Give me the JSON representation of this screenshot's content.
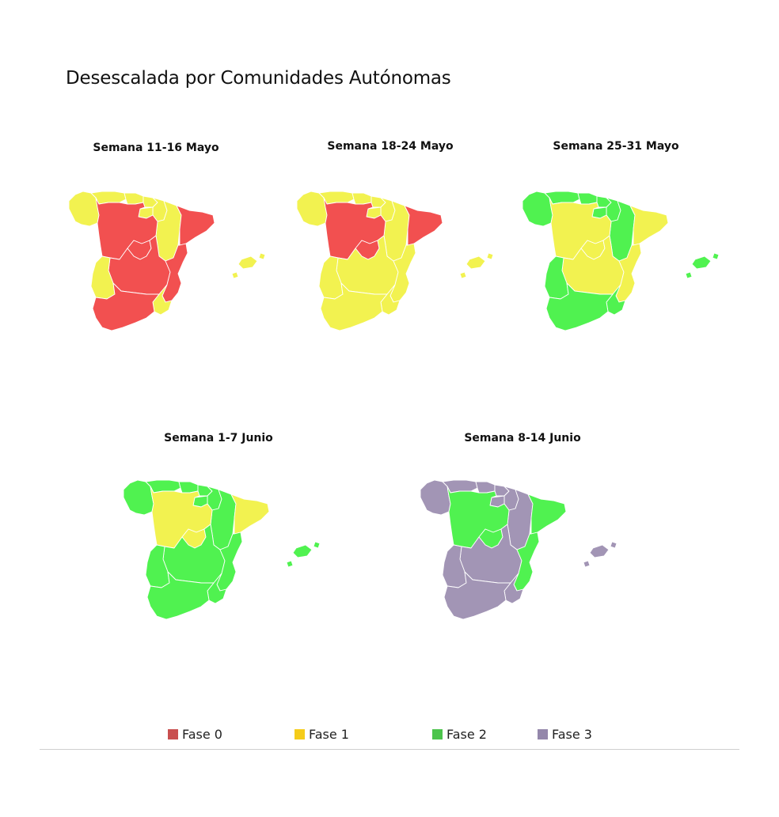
{
  "title": "Desescalada por Comunidades Autónomas",
  "colors": {
    "fase0": "#f25050",
    "fase1": "#f2f250",
    "fase2": "#50f250",
    "fase3": "#a295b5"
  },
  "legend": [
    {
      "label": "Fase 0",
      "color": "#c94f4f"
    },
    {
      "label": "Fase 1",
      "color": "#f5cc1a"
    },
    {
      "label": "Fase 2",
      "color": "#4cc44c"
    },
    {
      "label": "Fase 3",
      "color": "#9487ab"
    }
  ],
  "maps": [
    {
      "title": "Semana 11-16 Mayo",
      "phases": {
        "galicia": "fase1",
        "asturias": "fase1",
        "cantabria": "fase1",
        "paisvasco": "fase1",
        "navarra": "fase1",
        "larioja": "fase1",
        "aragon": "fase1",
        "cataluna": "fase0",
        "castillaleon": "fase0",
        "madrid": "fase0",
        "castillalamancha": "fase0",
        "extremadura": "fase1",
        "valencia": "fase0",
        "murcia": "fase1",
        "andalucia": "fase0",
        "baleares": "fase1"
      }
    },
    {
      "title": "Semana 18-24 Mayo",
      "phases": {
        "galicia": "fase1",
        "asturias": "fase1",
        "cantabria": "fase1",
        "paisvasco": "fase1",
        "navarra": "fase1",
        "larioja": "fase1",
        "aragon": "fase1",
        "cataluna": "fase0",
        "castillaleon": "fase0",
        "madrid": "fase0",
        "castillalamancha": "fase1",
        "extremadura": "fase1",
        "valencia": "fase1",
        "murcia": "fase1",
        "andalucia": "fase1",
        "baleares": "fase1"
      }
    },
    {
      "title": "Semana 25-31 Mayo",
      "phases": {
        "galicia": "fase2",
        "asturias": "fase2",
        "cantabria": "fase2",
        "paisvasco": "fase2",
        "navarra": "fase2",
        "larioja": "fase2",
        "aragon": "fase2",
        "cataluna": "fase1",
        "castillaleon": "fase1",
        "madrid": "fase1",
        "castillalamancha": "fase1",
        "extremadura": "fase2",
        "valencia": "fase1",
        "murcia": "fase2",
        "andalucia": "fase2",
        "baleares": "fase2"
      }
    },
    {
      "title": "Semana 1-7 Junio",
      "phases": {
        "galicia": "fase2",
        "asturias": "fase2",
        "cantabria": "fase2",
        "paisvasco": "fase2",
        "navarra": "fase2",
        "larioja": "fase2",
        "aragon": "fase2",
        "cataluna": "fase1",
        "castillaleon": "fase1",
        "madrid": "fase1",
        "castillalamancha": "fase2",
        "extremadura": "fase2",
        "valencia": "fase2",
        "murcia": "fase2",
        "andalucia": "fase2",
        "baleares": "fase2"
      }
    },
    {
      "title": "Semana 8-14 Junio",
      "phases": {
        "galicia": "fase3",
        "asturias": "fase3",
        "cantabria": "fase3",
        "paisvasco": "fase3",
        "navarra": "fase3",
        "larioja": "fase3",
        "aragon": "fase3",
        "cataluna": "fase2",
        "castillaleon": "fase2",
        "madrid": "fase2",
        "castillalamancha": "fase3",
        "extremadura": "fase3",
        "valencia": "fase2",
        "murcia": "fase3",
        "andalucia": "fase3",
        "baleares": "fase3"
      }
    }
  ]
}
